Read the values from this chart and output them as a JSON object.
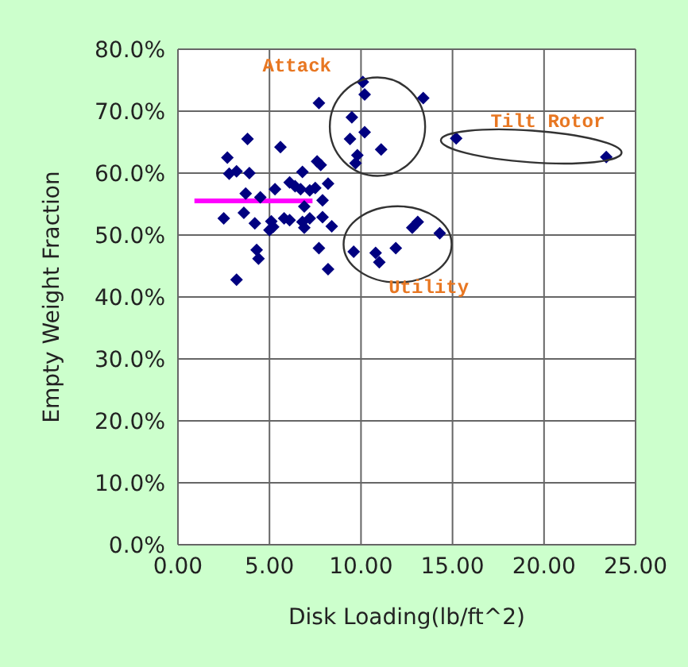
{
  "chart_data": {
    "type": "scatter",
    "xlabel": "Disk Loading(lb/ft^2)",
    "ylabel": "Empty Weight Fraction",
    "xlim": [
      0,
      25
    ],
    "ylim": [
      0,
      80
    ],
    "xticks": [
      {
        "value": 0,
        "label": "0.00"
      },
      {
        "value": 5,
        "label": "5.00"
      },
      {
        "value": 10,
        "label": "10.00"
      },
      {
        "value": 15,
        "label": "15.00"
      },
      {
        "value": 20,
        "label": "20.00"
      },
      {
        "value": 25,
        "label": "25.00"
      }
    ],
    "yticks": [
      {
        "value": 0,
        "label": "0.0%"
      },
      {
        "value": 10,
        "label": "10.0%"
      },
      {
        "value": 20,
        "label": "20.0%"
      },
      {
        "value": 30,
        "label": "30.0%"
      },
      {
        "value": 40,
        "label": "40.0%"
      },
      {
        "value": 50,
        "label": "50.0%"
      },
      {
        "value": 60,
        "label": "60.0%"
      },
      {
        "value": 70,
        "label": "70.0%"
      },
      {
        "value": 80,
        "label": "80.0%"
      }
    ],
    "grid": true,
    "legend": false,
    "marker": "diamond",
    "series": [
      {
        "color": "#000080",
        "x": [
          10.1,
          10.2,
          13.4,
          7.7,
          9.5,
          10.2,
          9.4,
          11.1,
          9.8,
          9.7,
          3.8,
          5.6,
          2.7,
          2.8,
          3.2,
          3.9,
          7.6,
          7.8,
          6.8,
          8.2,
          6.1,
          6.4,
          6.7,
          7.5,
          7.2,
          5.3,
          3.7,
          4.5,
          7.9,
          6.9,
          3.6,
          2.5,
          4.2,
          5.1,
          5.2,
          5.0,
          5.8,
          6.1,
          6.8,
          6.9,
          7.2,
          7.9,
          8.4,
          7.7,
          4.3,
          4.4,
          8.2,
          3.2,
          9.6,
          10.8,
          11.0,
          11.9,
          12.8,
          13.1,
          14.3,
          15.2,
          23.4
        ],
        "values": [
          74.7,
          72.7,
          72.1,
          71.3,
          69.0,
          66.6,
          65.5,
          63.8,
          62.9,
          61.6,
          65.5,
          64.2,
          62.5,
          59.9,
          60.3,
          60.0,
          61.9,
          61.3,
          60.2,
          58.3,
          58.5,
          57.9,
          57.4,
          57.6,
          57.2,
          57.4,
          56.7,
          56.1,
          55.6,
          54.6,
          53.6,
          52.7,
          51.9,
          52.2,
          51.3,
          50.8,
          52.7,
          52.4,
          52.1,
          51.2,
          52.7,
          52.9,
          51.4,
          47.9,
          47.6,
          46.2,
          44.5,
          42.8,
          47.3,
          47.1,
          45.6,
          47.9,
          51.2,
          52.1,
          50.3,
          65.6,
          62.6
        ]
      },
      {
        "type": "line",
        "color": "#ff00ff",
        "x": [
          0.9,
          7.35
        ],
        "values": [
          55.5,
          55.5
        ],
        "marker": "none"
      }
    ],
    "annotations": [
      "Attack",
      "Tilt Rotor",
      "Utility"
    ]
  }
}
